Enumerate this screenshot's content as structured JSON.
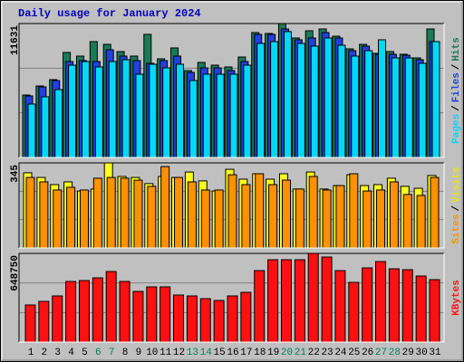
{
  "chart_data": {
    "title": "Daily usage for January 2024",
    "categories": [
      "1",
      "2",
      "3",
      "4",
      "5",
      "6",
      "7",
      "8",
      "9",
      "10",
      "11",
      "12",
      "13",
      "14",
      "15",
      "16",
      "17",
      "18",
      "19",
      "20",
      "21",
      "22",
      "23",
      "24",
      "25",
      "26",
      "27",
      "28",
      "29",
      "30",
      "31"
    ],
    "category_colors": [
      "#000000",
      "#000000",
      "#000000",
      "#000000",
      "#000000",
      "#00805c",
      "#00805c",
      "#000000",
      "#000000",
      "#000000",
      "#000000",
      "#000000",
      "#00805c",
      "#00805c",
      "#000000",
      "#000000",
      "#000000",
      "#000000",
      "#000000",
      "#00805c",
      "#00805c",
      "#000000",
      "#000000",
      "#000000",
      "#000000",
      "#000000",
      "#00805c",
      "#00805c",
      "#000000",
      "#000000",
      "#000000"
    ],
    "legend_separator": "/",
    "panels": [
      {
        "type": "bar",
        "ylim": [
          0,
          11631
        ],
        "yticks": [
          11631
        ],
        "series": [
          {
            "name": "Hits",
            "color": "#1a7a58",
            "values": [
              5423,
              6209,
              6760,
              9118,
              8803,
              10061,
              9825,
              9196,
              8803,
              10690,
              8567,
              9511,
              7546,
              8253,
              8017,
              7860,
              8725,
              10847,
              10768,
              11631,
              10375,
              11004,
              11161,
              10532,
              9432,
              9825,
              9039,
              9196,
              8960,
              8646,
              11161
            ]
          },
          {
            "name": "Files",
            "color": "#2040e0",
            "values": [
              5345,
              6131,
              6681,
              8332,
              8410,
              8332,
              9353,
              8803,
              8410,
              8174,
              8410,
              8803,
              7388,
              7781,
              7781,
              7546,
              8332,
              10690,
              10690,
              11161,
              10218,
              10375,
              10847,
              10375,
              9275,
              9668,
              8960,
              8960,
              8882,
              8489,
              10061
            ]
          },
          {
            "name": "Pages",
            "color": "#00d8f8",
            "values": [
              4637,
              5266,
              5895,
              8017,
              8332,
              7860,
              8332,
              8489,
              7231,
              8096,
              7781,
              8096,
              6681,
              7231,
              7231,
              7231,
              8017,
              9904,
              10061,
              10925,
              9904,
              9668,
              10375,
              9746,
              8803,
              9275,
              10218,
              8646,
              8646,
              8174,
              10061
            ]
          }
        ]
      },
      {
        "type": "bar",
        "ylim": [
          0,
          345
        ],
        "yticks": [
          345
        ],
        "series": [
          {
            "name": "Visits",
            "color": "#ffff20",
            "values": [
              305,
              286,
              257,
              268,
              231,
              239,
              345,
              290,
              286,
              261,
              290,
              286,
              308,
              272,
              231,
              319,
              279,
              301,
              279,
              301,
              239,
              308,
              239,
              253,
              297,
              253,
              257,
              283,
              250,
              242,
              294
            ]
          },
          {
            "name": "Sites",
            "color": "#ff9000",
            "values": [
              286,
              268,
              235,
              246,
              235,
              283,
              286,
              283,
              275,
              250,
              330,
              286,
              268,
              235,
              235,
              297,
              257,
              301,
              257,
              275,
              239,
              290,
              235,
              253,
              301,
              231,
              235,
              268,
              217,
              213,
              286
            ]
          }
        ]
      },
      {
        "type": "bar",
        "ylim": [
          0,
          648750
        ],
        "yticks": [
          648750
        ],
        "series": [
          {
            "name": "KBytes",
            "color": "#ff1010",
            "values": [
              271420,
              297900,
              337620,
              443540,
              450160,
              470020,
              516360,
              443540,
              370720,
              403820,
              403820,
              344240,
              337620,
              317760,
              304520,
              337620,
              364100,
              522980,
              602420,
              602420,
              602420,
              648750,
              622280,
              522980,
              436920,
              542840,
              589180,
              536220,
              529600,
              483260,
              456780
            ]
          }
        ]
      }
    ]
  }
}
